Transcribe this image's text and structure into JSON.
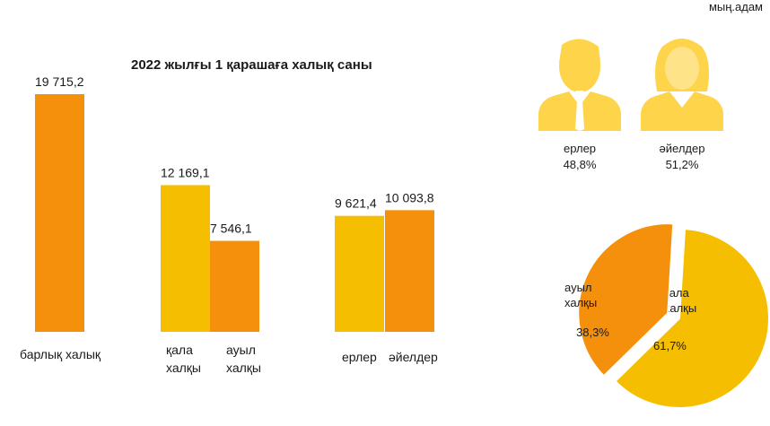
{
  "unit_label": "мың.адам",
  "colors": {
    "orange": "#F4900C",
    "yellow": "#F5BE00",
    "person": "#FDD44A"
  },
  "chart_data": [
    {
      "type": "bar",
      "title": "2022 жылғы 1 қарашаға халық саны",
      "categories": [
        "барлық халық",
        "қала халқы",
        "ауыл халқы",
        "ерлер",
        "әйелдер"
      ],
      "category_lines": [
        [
          "барлық халық"
        ],
        [
          "қала",
          "халқы"
        ],
        [
          "ауыл",
          "халқы"
        ],
        [
          "ерлер"
        ],
        [
          "әйелдер"
        ]
      ],
      "values": [
        19715.2,
        12169.1,
        7546.1,
        9621.4,
        10093.8
      ],
      "value_labels": [
        "19 715,2",
        "12 169,1",
        "7 546,1",
        "9 621,4",
        "10 093,8"
      ],
      "bar_colors": [
        "#F4900C",
        "#F5BE00",
        "#F4900C",
        "#F5BE00",
        "#F4900C"
      ],
      "ylim": [
        0,
        19715.2
      ]
    },
    {
      "type": "pie",
      "slices": [
        {
          "label_lines": [
            "қала",
            "халқы"
          ],
          "value": 61.7,
          "value_label": "61,7%",
          "color": "#F5BE00"
        },
        {
          "label_lines": [
            "ауыл",
            "халқы"
          ],
          "value": 38.3,
          "value_label": "38,3%",
          "color": "#F4900C"
        }
      ]
    }
  ],
  "gender_icons": [
    {
      "icon": "man-icon",
      "label": "ерлер",
      "percent": "48,8%"
    },
    {
      "icon": "woman-icon",
      "label": "әйелдер",
      "percent": "51,2%"
    }
  ]
}
